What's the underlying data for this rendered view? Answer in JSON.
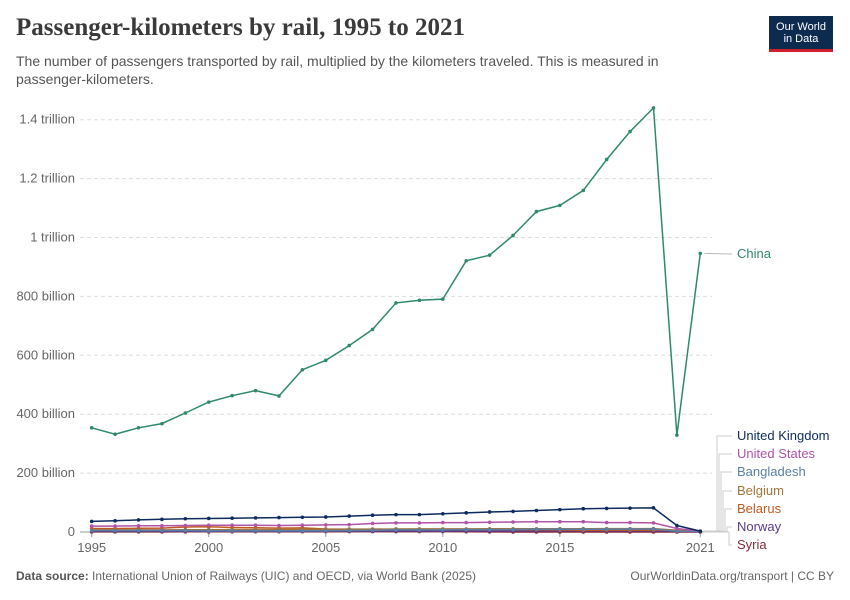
{
  "header": {
    "title": "Passenger-kilometers by rail, 1995 to 2021",
    "subtitle": "The number of passengers transported by rail, multiplied by the kilometers traveled. This is measured in passenger-kilometers."
  },
  "logo": {
    "line1": "Our World",
    "line2": "in Data",
    "bg": "#0d2b4f",
    "accent": "#cf1f2f"
  },
  "footer": {
    "source_label": "Data source:",
    "source_text": "International Union of Railways (UIC) and OECD, via World Bank (2025)",
    "right": "OurWorldinData.org/transport | CC BY"
  },
  "chart_data": {
    "type": "line",
    "x": [
      1995,
      1996,
      1997,
      1998,
      1999,
      2000,
      2001,
      2002,
      2003,
      2004,
      2005,
      2006,
      2007,
      2008,
      2009,
      2010,
      2011,
      2012,
      2013,
      2014,
      2015,
      2016,
      2017,
      2018,
      2019,
      2020,
      2021
    ],
    "xlim": [
      1994.5,
      2021.5
    ],
    "ylim": [
      0,
      1450000000000
    ],
    "grid": "horizontal dashed",
    "y_ticks": [
      {
        "value": 0,
        "label": "0"
      },
      {
        "value": 200000000000,
        "label": "200 billion"
      },
      {
        "value": 400000000000,
        "label": "400 billion"
      },
      {
        "value": 600000000000,
        "label": "600 billion"
      },
      {
        "value": 800000000000,
        "label": "800 billion"
      },
      {
        "value": 1000000000000,
        "label": "1 trillion"
      },
      {
        "value": 1200000000000,
        "label": "1.2 trillion"
      },
      {
        "value": 1400000000000,
        "label": "1.4 trillion"
      }
    ],
    "x_ticks": [
      {
        "value": 1995,
        "label": "1995"
      },
      {
        "value": 2000,
        "label": "2000"
      },
      {
        "value": 2005,
        "label": "2005"
      },
      {
        "value": 2010,
        "label": "2010"
      },
      {
        "value": 2015,
        "label": "2015"
      },
      {
        "value": 2021,
        "label": "2021"
      }
    ],
    "series": [
      {
        "name": "China",
        "color": "#2e8a6b",
        "values": [
          354000000000,
          332000000000,
          354000000000,
          368000000000,
          404000000000,
          441000000000,
          463000000000,
          480000000000,
          462000000000,
          551000000000,
          583000000000,
          633000000000,
          688000000000,
          778000000000,
          787000000000,
          791000000000,
          921000000000,
          940000000000,
          1007000000000,
          1088000000000,
          1109000000000,
          1160000000000,
          1265000000000,
          1360000000000,
          1440000000000,
          329000000000,
          946000000000
        ]
      },
      {
        "name": "United Kingdom",
        "color": "#0d2b5c",
        "values": [
          36000000000,
          38000000000,
          41000000000,
          43000000000,
          45000000000,
          46000000000,
          47000000000,
          48000000000,
          49000000000,
          50000000000,
          51000000000,
          54000000000,
          57000000000,
          59000000000,
          59000000000,
          62000000000,
          65000000000,
          68000000000,
          70000000000,
          73000000000,
          76000000000,
          79000000000,
          80000000000,
          81000000000,
          82000000000,
          22000000000,
          3000000000
        ]
      },
      {
        "name": "United States",
        "color": "#b054a8",
        "values": [
          20000000000,
          20000000000,
          21000000000,
          21000000000,
          22000000000,
          23000000000,
          23000000000,
          23000000000,
          22000000000,
          23000000000,
          24000000000,
          25000000000,
          29000000000,
          31000000000,
          31000000000,
          32000000000,
          32000000000,
          33000000000,
          34000000000,
          35000000000,
          35000000000,
          35000000000,
          32000000000,
          32000000000,
          31000000000,
          12000000000,
          3000000000
        ]
      },
      {
        "name": "Bangladesh",
        "color": "#5a7fa6",
        "values": [
          5000000000,
          5000000000,
          5000000000,
          5000000000,
          5000000000,
          4000000000,
          4000000000,
          4000000000,
          4000000000,
          4000000000,
          4000000000,
          5000000000,
          6000000000,
          7000000000,
          7000000000,
          7000000000,
          8000000000,
          8000000000,
          8000000000,
          9000000000,
          9000000000,
          9000000000,
          9000000000,
          10000000000,
          10000000000,
          3000000000,
          2000000000
        ]
      },
      {
        "name": "Belgium",
        "color": "#a0743a",
        "values": [
          7000000000,
          7000000000,
          7000000000,
          7000000000,
          7500000000,
          7700000000,
          8000000000,
          8300000000,
          8500000000,
          8700000000,
          9000000000,
          9500000000,
          10000000000,
          10300000000,
          10400000000,
          10500000000,
          10600000000,
          10800000000,
          10900000000,
          11000000000,
          11200000000,
          11300000000,
          11500000000,
          11500000000,
          11600000000,
          6000000000,
          2500000000
        ]
      },
      {
        "name": "Belarus",
        "color": "#c05a20",
        "values": [
          12000000000,
          11600000000,
          12500000000,
          13300000000,
          16900000000,
          17700000000,
          15300000000,
          14300000000,
          13300000000,
          13900000000,
          10300000000,
          9900000000,
          9400000000,
          8800000000,
          7400000000,
          7600000000,
          8100000000,
          8600000000,
          8400000000,
          7800000000,
          7000000000,
          6100000000,
          6400000000,
          6600000000,
          6700000000,
          5200000000,
          2000000000
        ]
      },
      {
        "name": "Norway",
        "color": "#5a3a8a",
        "values": [
          2400000000,
          2500000000,
          2600000000,
          2700000000,
          2700000000,
          2800000000,
          2800000000,
          2700000000,
          2700000000,
          2800000000,
          2900000000,
          3000000000,
          3100000000,
          3200000000,
          3200000000,
          3200000000,
          3300000000,
          3500000000,
          3600000000,
          3700000000,
          3800000000,
          3900000000,
          3900000000,
          3900000000,
          3900000000,
          2000000000,
          1500000000
        ]
      },
      {
        "name": "Syria",
        "color": "#8a2a3a",
        "values": [
          500000000,
          500000000,
          500000000,
          500000000,
          600000000,
          600000000,
          700000000,
          800000000,
          900000000,
          1000000000,
          1100000000,
          1200000000,
          1300000000,
          1400000000,
          1500000000,
          1600000000,
          1000000000,
          300000000,
          100000000,
          100000000,
          100000000,
          100000000,
          100000000,
          100000000,
          100000000,
          100000000,
          100000000
        ]
      }
    ]
  }
}
